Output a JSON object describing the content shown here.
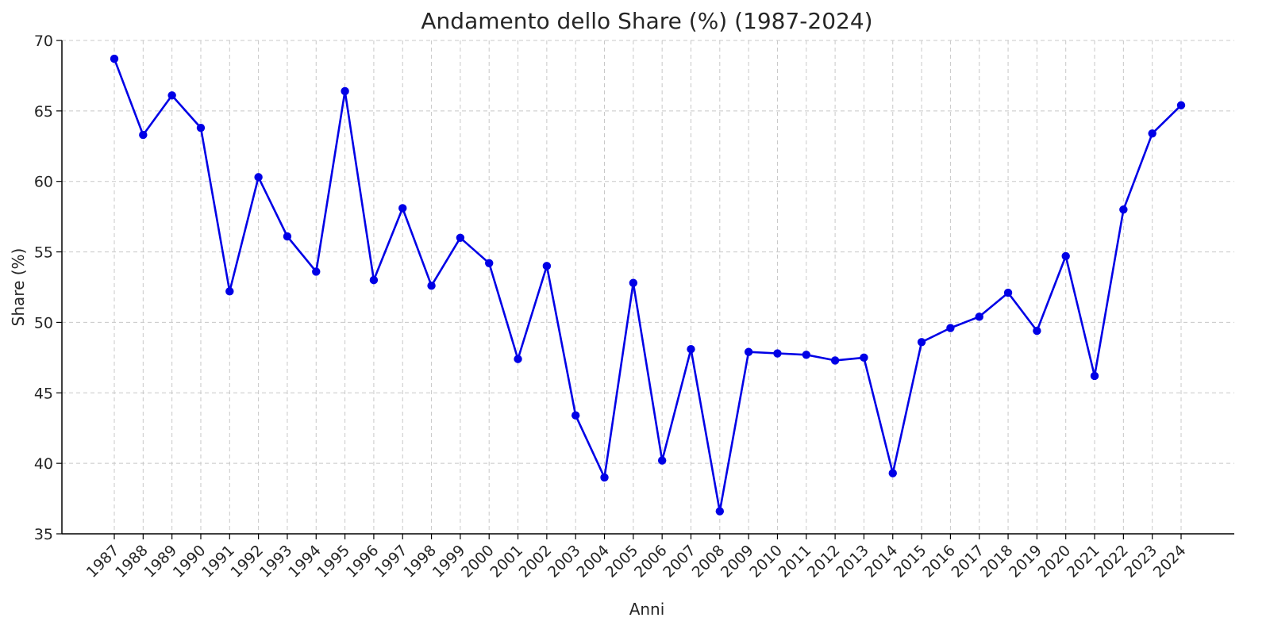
{
  "chart_data": {
    "type": "line",
    "title": "Andamento dello Share (%) (1987-2024)",
    "xlabel": "Anni",
    "ylabel": "Share (%)",
    "ylim": [
      35,
      70
    ],
    "yticks": [
      35,
      40,
      45,
      50,
      55,
      60,
      65,
      70
    ],
    "grid": true,
    "x": [
      "1987",
      "1988",
      "1989",
      "1990",
      "1991",
      "1992",
      "1993",
      "1994",
      "1995",
      "1996",
      "1997",
      "1998",
      "1999",
      "2000",
      "2001",
      "2002",
      "2003",
      "2004",
      "2005",
      "2006",
      "2007",
      "2008",
      "2009",
      "2010",
      "2011",
      "2012",
      "2013",
      "2014",
      "2015",
      "2016",
      "2017",
      "2018",
      "2019",
      "2020",
      "2021",
      "2022",
      "2023",
      "2024"
    ],
    "series": [
      {
        "color": "#0000e6",
        "values": [
          68.7,
          63.3,
          66.1,
          63.8,
          52.2,
          60.3,
          56.1,
          53.6,
          66.4,
          53.0,
          58.1,
          52.6,
          56.0,
          54.2,
          47.4,
          54.0,
          43.4,
          39.0,
          52.8,
          40.2,
          48.1,
          36.6,
          47.9,
          47.8,
          47.7,
          47.3,
          47.5,
          39.3,
          48.6,
          49.6,
          50.4,
          52.1,
          49.4,
          54.7,
          46.2,
          58.0,
          63.4,
          65.4
        ]
      }
    ]
  }
}
